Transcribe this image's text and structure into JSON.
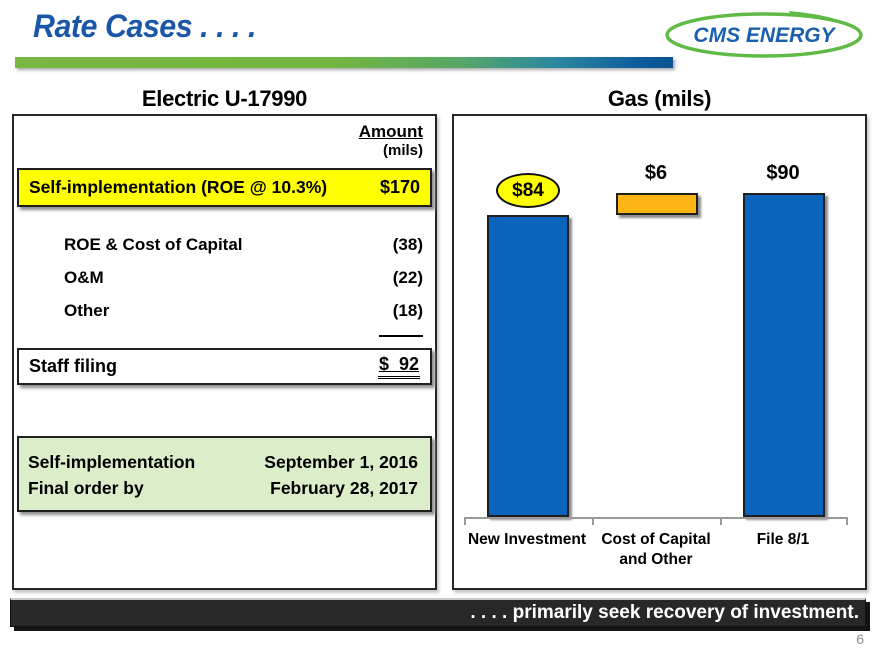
{
  "slide": {
    "title": "Rate Cases . . . .",
    "footer_banner": ". . . . primarily seek recovery of investment.",
    "page_number": "6"
  },
  "logo": {
    "text": "CMS ENERGY"
  },
  "electric": {
    "heading": "Electric U-17990",
    "amount_header": "Amount",
    "amount_units": "(mils)",
    "highlight_row": {
      "label": "Self-implementation (ROE @ 10.3%)",
      "value": "$170"
    },
    "detail_rows": [
      {
        "label": "ROE & Cost of Capital",
        "value": "(38)"
      },
      {
        "label": "O&M",
        "value": "(22)"
      },
      {
        "label": "Other",
        "value": "(18)"
      }
    ],
    "total_row": {
      "label": "Staff filing",
      "value": "$  92"
    },
    "schedule": [
      {
        "label": "Self-implementation",
        "value": "September 1, 2016"
      },
      {
        "label": "Final order by",
        "value": "February 28, 2017"
      }
    ]
  },
  "gas": {
    "heading": "Gas (mils)"
  },
  "chart_data": {
    "type": "bar",
    "title": "Gas (mils)",
    "categories": [
      "New Investment",
      "Cost of Capital and Other",
      "File 8/1"
    ],
    "values": [
      84,
      6,
      90
    ],
    "bar_labels": [
      "$84",
      "$6",
      "$90"
    ],
    "bar_segments": [
      {
        "from": 0,
        "to": 84
      },
      {
        "from": 84,
        "to": 90
      },
      {
        "from": 0,
        "to": 90
      }
    ],
    "bar_colors": [
      "#0b64bc",
      "#fdb515",
      "#0b64bc"
    ],
    "ylim": [
      0,
      105
    ],
    "xlabel": "",
    "ylabel": "",
    "grid": false,
    "legend": false,
    "y_axis_hidden": true
  },
  "colors": {
    "brand_blue": "#1a57a6",
    "brand_green": "#5fbb46",
    "highlight_yellow": "#ffff00",
    "schedule_green": "#dcedca",
    "bar_blue": "#0b64bc",
    "bar_orange": "#fdb515",
    "footer_black": "#282828"
  }
}
